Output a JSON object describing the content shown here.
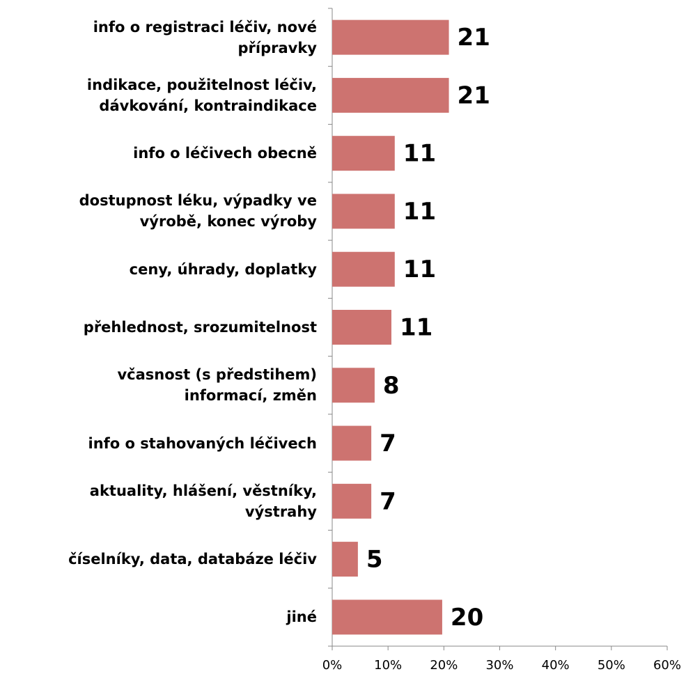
{
  "chart_data": {
    "type": "barh",
    "categories": [
      "info o registraci léčiv, nové\npřípravky",
      "indikace, použitelnost léčiv,\ndávkování, kontraindikace",
      "info o léčivech obecně",
      "dostupnost léku, výpadky ve\nvýrobě, konec výroby",
      "ceny, úhrady, doplatky",
      "přehlednost, srozumitelnost",
      "včasnost (s předstihem)\ninformací, změn",
      "info o stahovaných léčivech",
      "aktuality, hlášení, věstníky,\nvýstrahy",
      "číselníky, data, databáze léčiv",
      "jiné"
    ],
    "values": [
      20.9,
      20.9,
      11.2,
      11.2,
      11.2,
      10.6,
      7.6,
      7.0,
      7.0,
      4.6,
      19.7
    ],
    "value_labels": [
      "21",
      "21",
      "11",
      "11",
      "11",
      "11",
      "8",
      "7",
      "7",
      "5",
      "20"
    ],
    "color": "#cd7370",
    "xlim": [
      0,
      60
    ],
    "xticks": [
      {
        "value": 0,
        "label": "0%"
      },
      {
        "value": 10,
        "label": "10%"
      },
      {
        "value": 20,
        "label": "20%"
      },
      {
        "value": 30,
        "label": "30%"
      },
      {
        "value": 40,
        "label": "40%"
      },
      {
        "value": 50,
        "label": "50%"
      },
      {
        "value": 60,
        "label": "60%"
      }
    ]
  }
}
